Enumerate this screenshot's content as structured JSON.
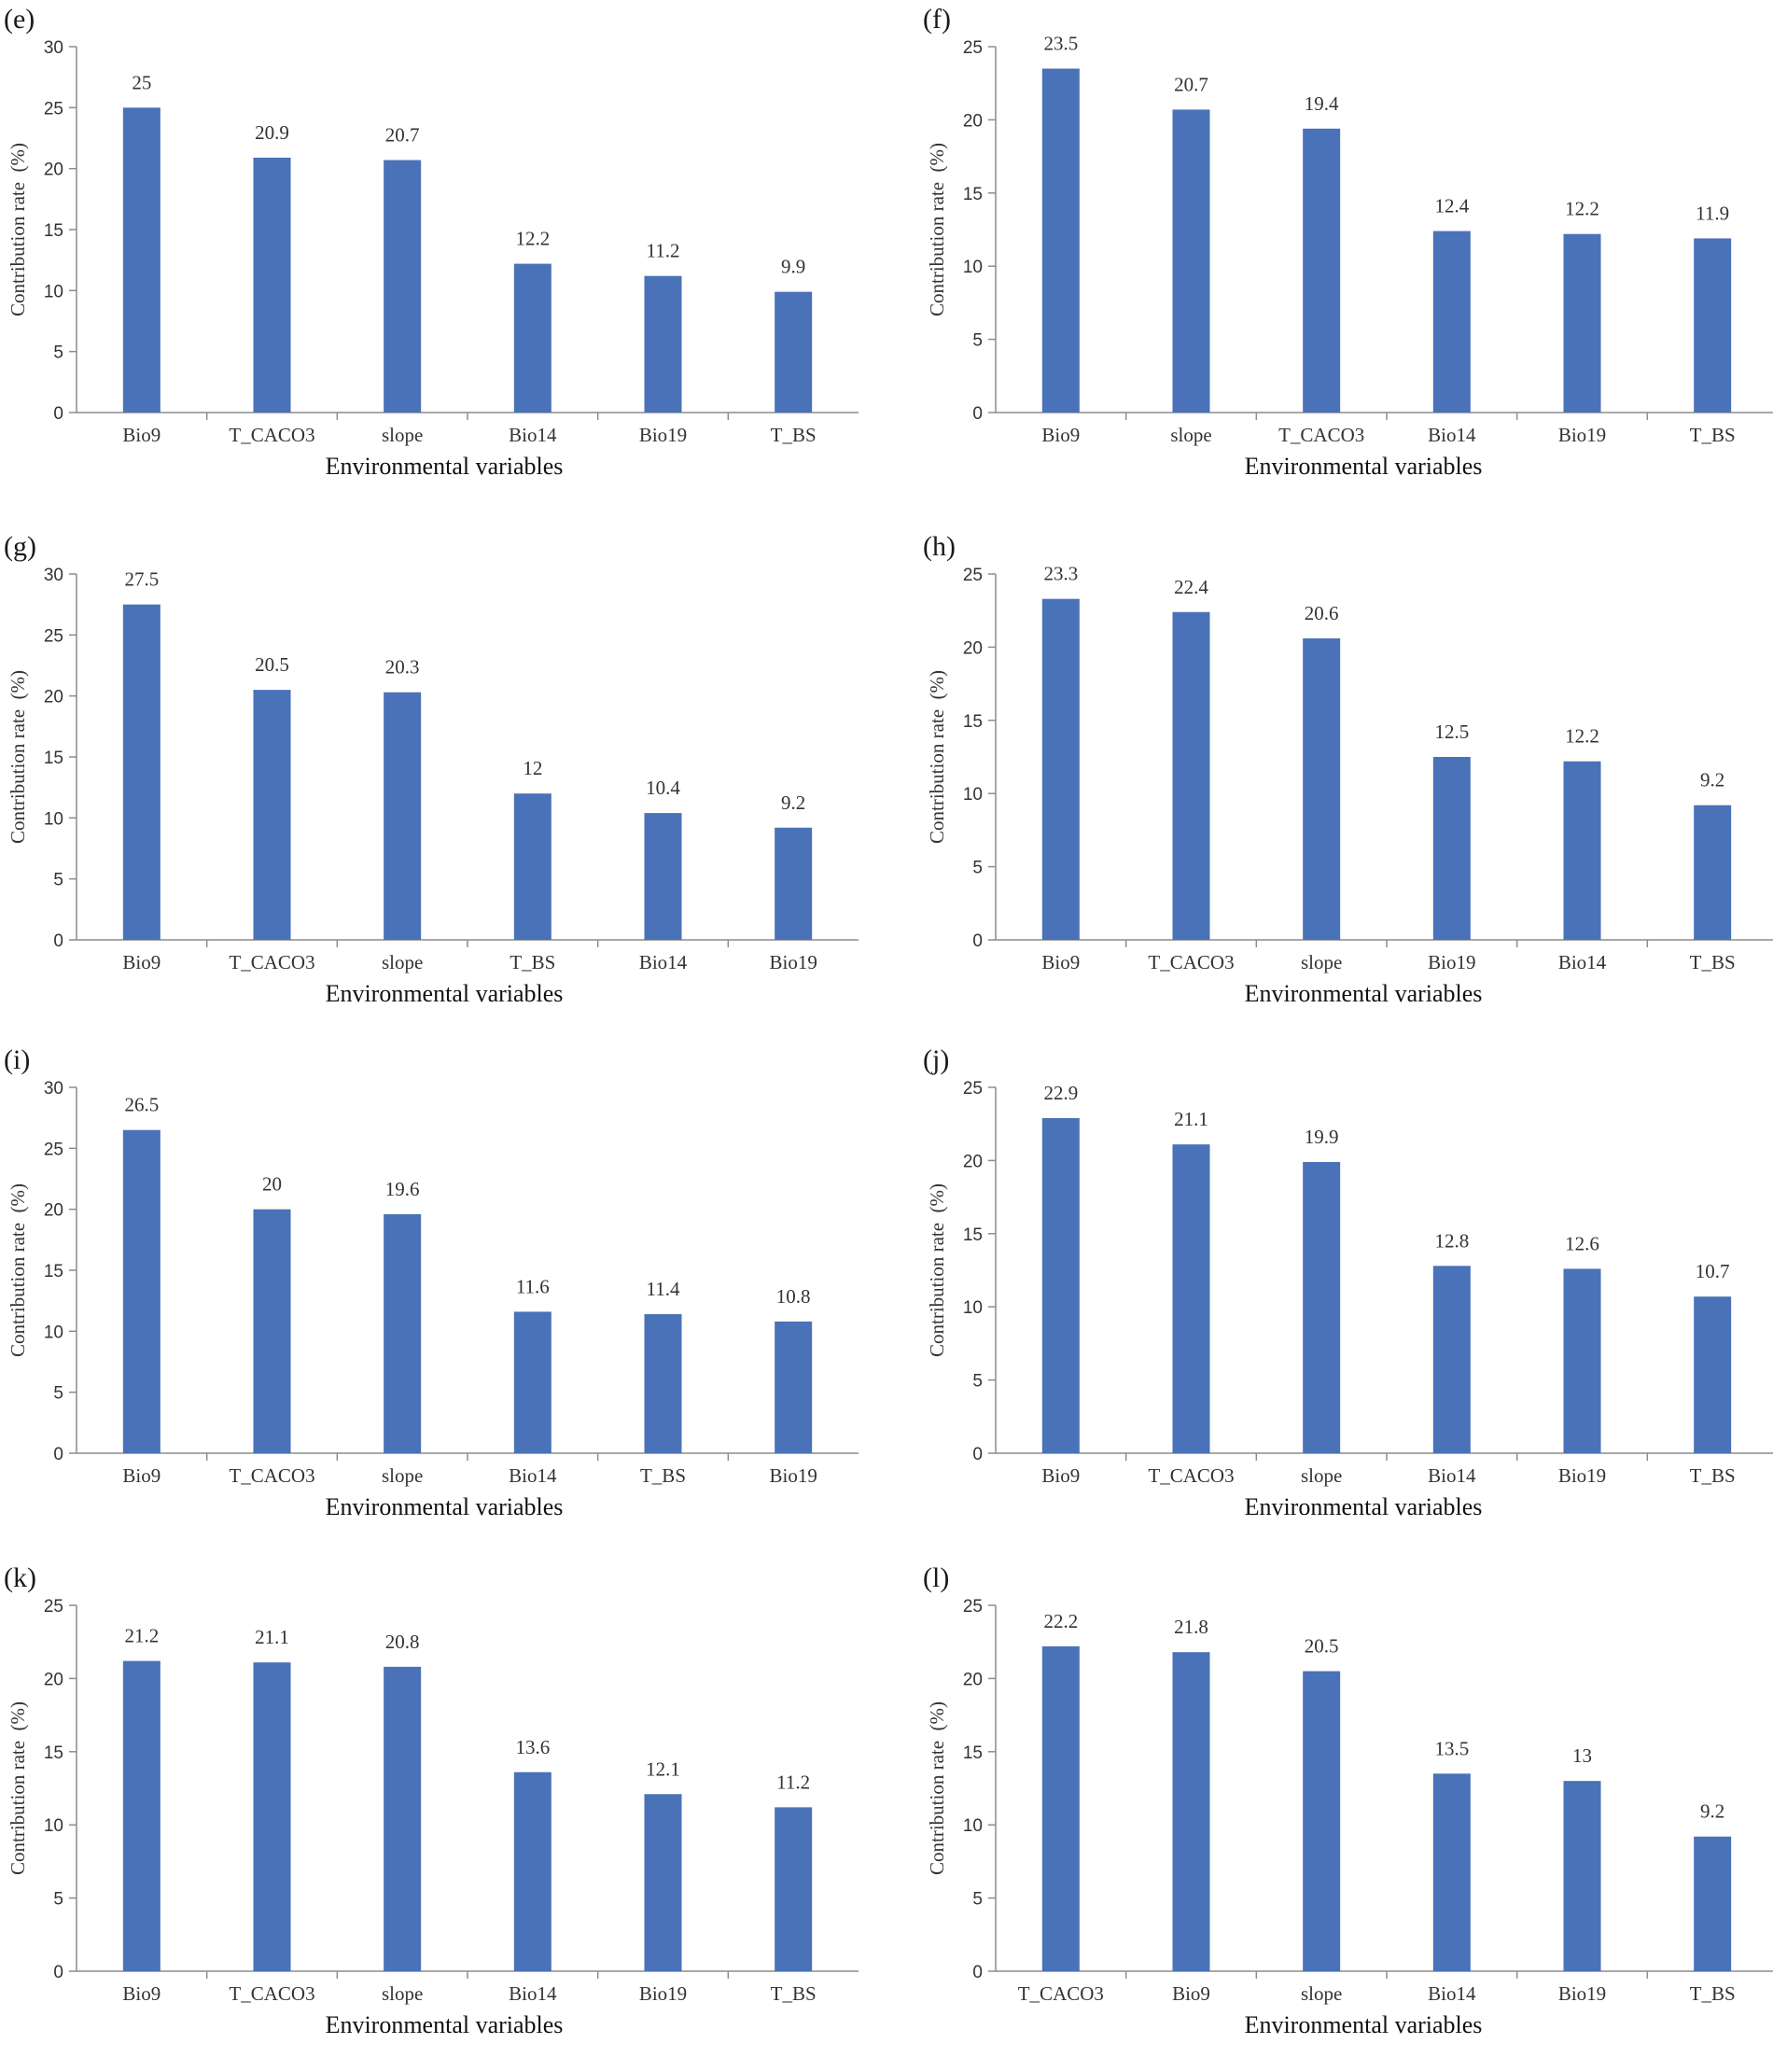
{
  "bar_color": "#4a72b8",
  "chart_data": [
    {
      "panel": "(e)",
      "type": "bar",
      "categories": [
        "Bio9",
        "T_CACO3",
        "slope",
        "Bio14",
        "Bio19",
        "T_BS"
      ],
      "values": [
        25,
        20.9,
        20.7,
        12.2,
        11.2,
        9.9
      ],
      "ylim": [
        0,
        30
      ],
      "yticks": [
        0,
        5,
        10,
        15,
        20,
        25,
        30
      ],
      "xlabel": "Environmental variables",
      "ylabel": "Contribution rate",
      "ylabel_unit": "(%)"
    },
    {
      "panel": "(f)",
      "type": "bar",
      "categories": [
        "Bio9",
        "slope",
        "T_CACO3",
        "Bio14",
        "Bio19",
        "T_BS"
      ],
      "values": [
        23.5,
        20.7,
        19.4,
        12.4,
        12.2,
        11.9
      ],
      "ylim": [
        0,
        25
      ],
      "yticks": [
        0,
        5,
        10,
        15,
        20,
        25
      ],
      "xlabel": "Environmental variables",
      "ylabel": "Contribution rate",
      "ylabel_unit": "(%)"
    },
    {
      "panel": "(g)",
      "type": "bar",
      "categories": [
        "Bio9",
        "T_CACO3",
        "slope",
        "T_BS",
        "Bio14",
        "Bio19"
      ],
      "values": [
        27.5,
        20.5,
        20.3,
        12,
        10.4,
        9.2
      ],
      "ylim": [
        0,
        30
      ],
      "yticks": [
        0,
        5,
        10,
        15,
        20,
        25,
        30
      ],
      "xlabel": "Environmental variables",
      "ylabel": "Contribution rate",
      "ylabel_unit": "(%)"
    },
    {
      "panel": "(h)",
      "type": "bar",
      "categories": [
        "Bio9",
        "T_CACO3",
        "slope",
        "Bio19",
        "Bio14",
        "T_BS"
      ],
      "values": [
        23.3,
        22.4,
        20.6,
        12.5,
        12.2,
        9.2
      ],
      "ylim": [
        0,
        25
      ],
      "yticks": [
        0,
        5,
        10,
        15,
        20,
        25
      ],
      "xlabel": "Environmental variables",
      "ylabel": "Contribution rate",
      "ylabel_unit": "(%)"
    },
    {
      "panel": "(i)",
      "type": "bar",
      "categories": [
        "Bio9",
        "T_CACO3",
        "slope",
        "Bio14",
        "T_BS",
        "Bio19"
      ],
      "values": [
        26.5,
        20,
        19.6,
        11.6,
        11.4,
        10.8
      ],
      "ylim": [
        0,
        30
      ],
      "yticks": [
        0,
        5,
        10,
        15,
        20,
        25,
        30
      ],
      "xlabel": "Environmental variables",
      "ylabel": "Contribution rate",
      "ylabel_unit": "(%)"
    },
    {
      "panel": "(j)",
      "type": "bar",
      "categories": [
        "Bio9",
        "T_CACO3",
        "slope",
        "Bio14",
        "Bio19",
        "T_BS"
      ],
      "values": [
        22.9,
        21.1,
        19.9,
        12.8,
        12.6,
        10.7
      ],
      "ylim": [
        0,
        25
      ],
      "yticks": [
        0,
        5,
        10,
        15,
        20,
        25
      ],
      "xlabel": "Environmental variables",
      "ylabel": "Contribution rate",
      "ylabel_unit": "(%)"
    },
    {
      "panel": "(k)",
      "type": "bar",
      "categories": [
        "Bio9",
        "T_CACO3",
        "slope",
        "Bio14",
        "Bio19",
        "T_BS"
      ],
      "values": [
        21.2,
        21.1,
        20.8,
        13.6,
        12.1,
        11.2
      ],
      "ylim": [
        0,
        25
      ],
      "yticks": [
        0,
        5,
        10,
        15,
        20,
        25
      ],
      "xlabel": "Environmental variables",
      "ylabel": "Contribution rate",
      "ylabel_unit": "(%)"
    },
    {
      "panel": "(l)",
      "type": "bar",
      "categories": [
        "T_CACO3",
        "Bio9",
        "slope",
        "Bio14",
        "Bio19",
        "T_BS"
      ],
      "values": [
        22.2,
        21.8,
        20.5,
        13.5,
        13,
        9.2
      ],
      "ylim": [
        0,
        25
      ],
      "yticks": [
        0,
        5,
        10,
        15,
        20,
        25
      ],
      "xlabel": "Environmental variables",
      "ylabel": "Contribution rate",
      "ylabel_unit": "(%)"
    }
  ]
}
